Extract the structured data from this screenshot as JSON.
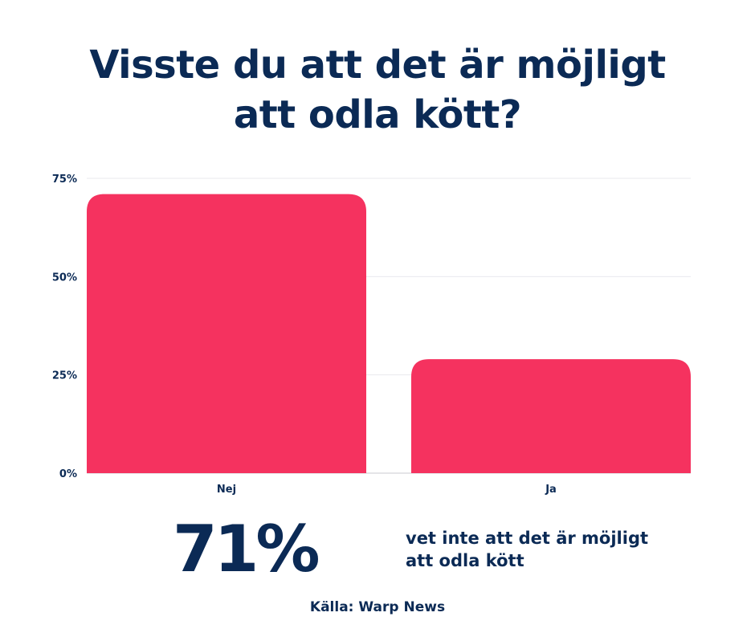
{
  "title": {
    "line1": "Visste du att det är möjligt",
    "line2": "att odla kött?"
  },
  "chart_data": {
    "type": "bar",
    "categories": [
      "Nej",
      "Ja"
    ],
    "values": [
      71,
      29
    ],
    "y_ticks": [
      "0%",
      "25%",
      "50%",
      "75%"
    ],
    "ylim": [
      0,
      75
    ],
    "grid": true,
    "bar_color": "#f5325f",
    "title": "",
    "xlabel": "",
    "ylabel": ""
  },
  "stat": {
    "value": "71%",
    "text_line1": "vet inte att det är möjligt",
    "text_line2": "att odla kött"
  },
  "source": {
    "text": "Källa:  Warp News"
  },
  "colors": {
    "text": "#0b2a55",
    "bar": "#f5325f",
    "grid": "#e9e9ee"
  }
}
